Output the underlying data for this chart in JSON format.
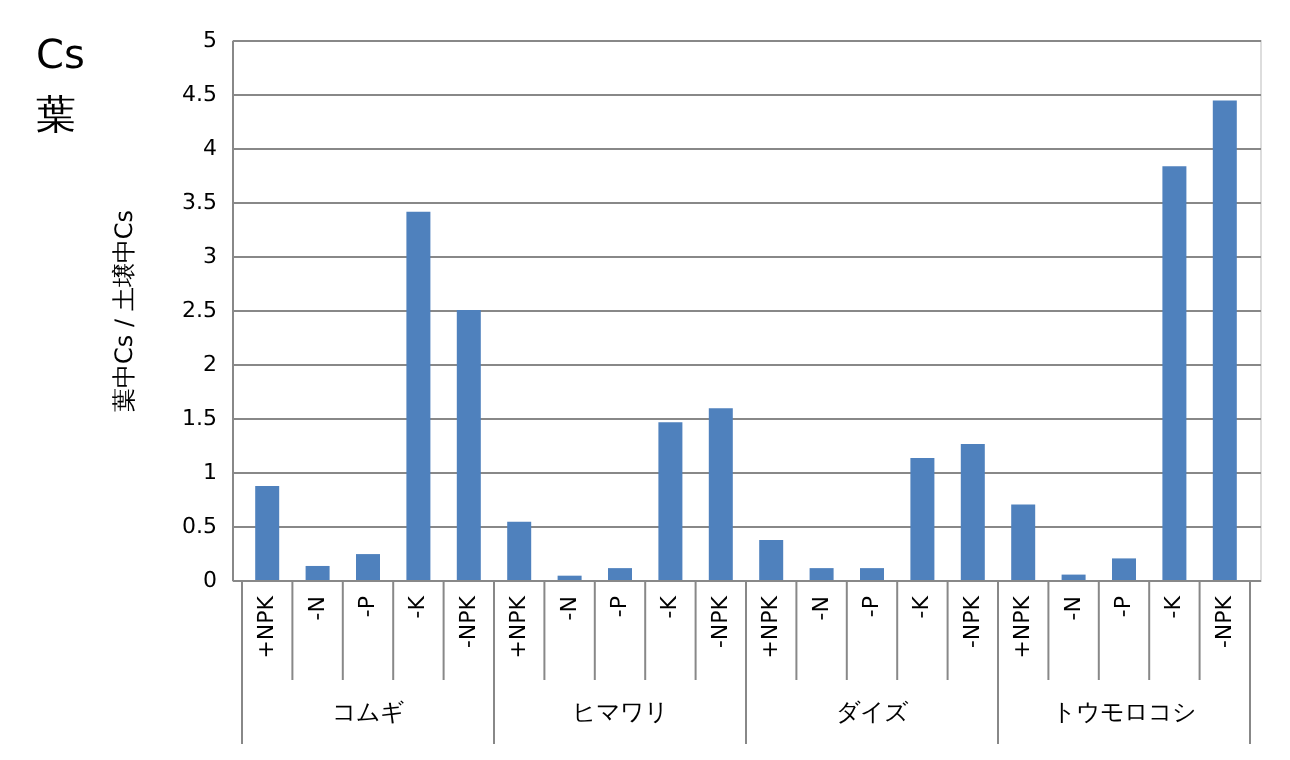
{
  "chart_data": {
    "type": "bar",
    "title": "Cs\n葉",
    "ylabel": "葉中Cs / 土壌中Cs",
    "categories": [
      "+NPK",
      "-N",
      "-P",
      "-K",
      "-NPK",
      "+NPK",
      "-N",
      "-P",
      "-K",
      "-NPK",
      "+NPK",
      "-N",
      "-P",
      "-K",
      "-NPK",
      "+NPK",
      "-N",
      "-P",
      "-K",
      "-NPK"
    ],
    "annotations": [
      "コムギ",
      "ヒマワリ",
      "ダイズ",
      "トウモロコシ"
    ],
    "values": [
      0.87,
      0.13,
      0.24,
      3.41,
      2.5,
      0.54,
      0.04,
      0.11,
      1.46,
      1.59,
      0.37,
      0.11,
      0.11,
      1.13,
      1.26,
      0.7,
      0.05,
      0.2,
      3.83,
      4.44
    ],
    "color": "#4f81bd",
    "ylim": [
      0,
      5
    ],
    "yticks": [
      0,
      0.5,
      1,
      1.5,
      2,
      2.5,
      3,
      3.5,
      4,
      4.5,
      5
    ],
    "grid": "y"
  }
}
